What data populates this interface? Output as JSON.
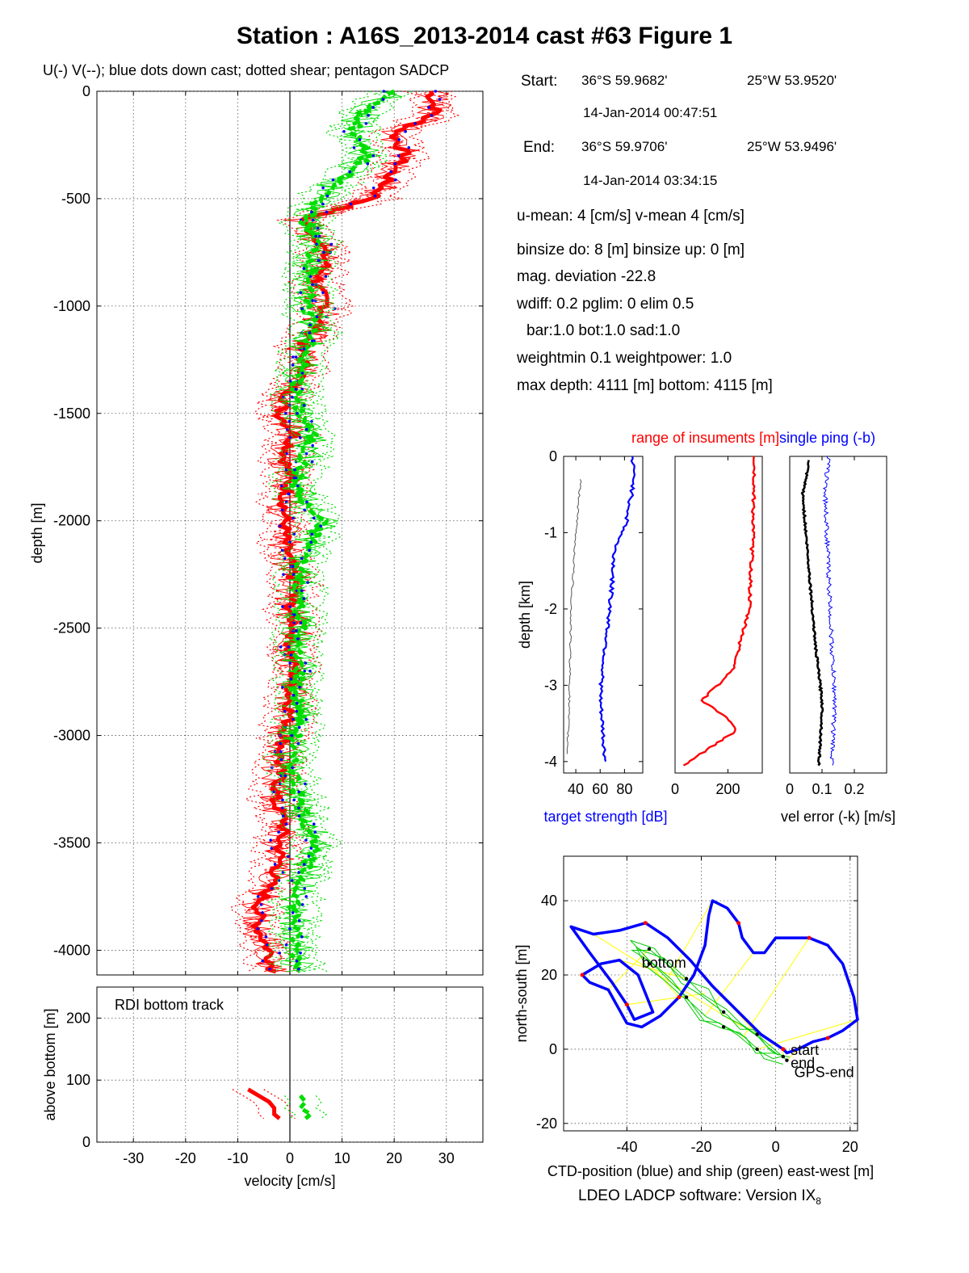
{
  "title": "Station : A16S_2013-2014 cast #63  Figure 1",
  "legend_text": "U(-) V(--); blue dots down cast; dotted shear; pentagon SADCP",
  "info": {
    "start_label": "Start:",
    "start_lat": "36°S 59.9682'",
    "start_lon": "25°W 53.9520'",
    "start_time": "14-Jan-2014 00:47:51",
    "end_label": "End:",
    "end_lat": "36°S 59.9706'",
    "end_lon": "25°W 53.9496'",
    "end_time": "14-Jan-2014 03:34:15",
    "means": "u-mean:   4 [cm/s]    v-mean   4 [cm/s]",
    "binsize": "binsize do: 8 [m]  binsize up:  0 [m]",
    "mag": "mag. deviation -22.8",
    "wdiff": "wdiff: 0.2  pglim: 0  elim 0.5",
    "bar": "bar:1.0 bot:1.0 sad:1.0",
    "weight": "weightmin 0.1  weightpower: 1.0",
    "depth": "max depth: 4111 [m]   bottom: 4115 [m]"
  },
  "software": "LDEO LADCP software: Version IX",
  "software_sub": "8",
  "colors": {
    "u": "#ff0000",
    "v": "#00dd00",
    "downcast": "#0000ff",
    "ctd": "#0000ff",
    "ship": "#00cc00",
    "links": "#ffff00"
  },
  "chart_data": [
    {
      "id": "profile",
      "type": "line",
      "ylabel": "depth [m]",
      "xlim": [
        -37,
        37
      ],
      "ylim": [
        -4115,
        0
      ],
      "xticks": [
        -30,
        -20,
        -10,
        0,
        10,
        20,
        30
      ],
      "yticks": [
        0,
        -500,
        -1000,
        -1500,
        -2000,
        -2500,
        -3000,
        -3500,
        -4000
      ],
      "grid": true,
      "series": [
        {
          "name": "U",
          "color": "#ff0000",
          "depth": [
            0,
            -100,
            -200,
            -300,
            -400,
            -500,
            -600,
            -700,
            -800,
            -900,
            -1000,
            -1100,
            -1200,
            -1300,
            -1400,
            -1500,
            -1600,
            -1700,
            -1800,
            -1900,
            -2000,
            -2100,
            -2200,
            -2300,
            -2400,
            -2500,
            -2600,
            -2700,
            -2800,
            -2900,
            -3000,
            -3100,
            -3200,
            -3300,
            -3400,
            -3500,
            -3600,
            -3700,
            -3800,
            -3900,
            -4000,
            -4100
          ],
          "values": [
            27,
            28,
            20,
            22,
            19,
            16,
            2,
            6,
            7,
            5,
            7,
            5,
            2,
            3,
            0,
            -2,
            1,
            -1,
            0,
            -1,
            -1,
            -1,
            0,
            1,
            0,
            1,
            0,
            1,
            0,
            0,
            -1,
            -2,
            -2,
            -3,
            -1,
            -2,
            -2,
            -4,
            -6,
            -6,
            -4,
            -3
          ]
        },
        {
          "name": "V",
          "color": "#00dd00",
          "depth": [
            0,
            -100,
            -200,
            -300,
            -400,
            -500,
            -600,
            -700,
            -800,
            -900,
            -1000,
            -1100,
            -1200,
            -1300,
            -1400,
            -1500,
            -1600,
            -1700,
            -1800,
            -1900,
            -2000,
            -2100,
            -2200,
            -2300,
            -2400,
            -2500,
            -2600,
            -2700,
            -2800,
            -2900,
            -3000,
            -3100,
            -3200,
            -3300,
            -3400,
            -3500,
            -3600,
            -3700,
            -3800,
            -3900,
            -4000,
            -4100
          ],
          "values": [
            20,
            14,
            12,
            15,
            10,
            6,
            3,
            5,
            4,
            4,
            3,
            5,
            3,
            2,
            1,
            2,
            4,
            3,
            1,
            2,
            6,
            4,
            2,
            2,
            2,
            2,
            1,
            2,
            1,
            2,
            1,
            0,
            1,
            2,
            3,
            5,
            3,
            2,
            1,
            1,
            1,
            2
          ]
        }
      ]
    },
    {
      "id": "bottom_track",
      "type": "line",
      "annotation": "RDI bottom track",
      "xlabel": "velocity [cm/s]",
      "ylabel": "above bottom [m]",
      "xlim": [
        -37,
        37
      ],
      "ylim": [
        0,
        250
      ],
      "xticks": [
        -30,
        -20,
        -10,
        0,
        10,
        20,
        30
      ],
      "yticks": [
        0,
        100,
        200
      ],
      "grid": true,
      "series": [
        {
          "name": "U",
          "color": "#ff0000",
          "height": [
            85,
            75,
            65,
            55,
            45,
            38
          ],
          "values": [
            -8,
            -6,
            -4,
            -3,
            -3,
            -2
          ]
        },
        {
          "name": "V",
          "color": "#00dd00",
          "height": [
            75,
            65,
            55,
            45,
            38
          ],
          "values": [
            2,
            3,
            2,
            4,
            3
          ]
        }
      ]
    },
    {
      "id": "target_strength",
      "type": "line",
      "ylabel": "depth [km]",
      "xlabel": "target strength [dB]",
      "xlim": [
        30,
        95
      ],
      "ylim": [
        -4.15,
        0
      ],
      "xticks": [
        40,
        60,
        80
      ],
      "yticks": [
        0,
        -1,
        -2,
        -3,
        -4
      ],
      "series": [
        {
          "name": "strength",
          "color": "#0000ff",
          "depth": [
            0,
            -0.3,
            -0.9,
            -1.2,
            -2,
            -2.8,
            -3.2,
            -3.6,
            -4.0
          ],
          "values": [
            86,
            88,
            81,
            72,
            68,
            62,
            60,
            62,
            64
          ]
        },
        {
          "name": "noise",
          "color": "#555555",
          "depth": [
            -0.3,
            -1,
            -2,
            -3,
            -3.9
          ],
          "values": [
            44,
            40,
            36,
            35,
            33
          ]
        }
      ]
    },
    {
      "id": "range",
      "type": "line",
      "annotation": "range of insuments [m]",
      "xlim": [
        0,
        330
      ],
      "ylim": [
        -4.15,
        0
      ],
      "xticks": [
        0,
        200
      ],
      "series": [
        {
          "name": "range",
          "color": "#ff0000",
          "depth": [
            0,
            -1,
            -2,
            -2.8,
            -3.2,
            -3.4,
            -3.6,
            -4.05
          ],
          "values": [
            300,
            295,
            280,
            220,
            100,
            190,
            230,
            30
          ]
        }
      ]
    },
    {
      "id": "vel_error",
      "type": "line",
      "annotation": "single ping (-b)",
      "xlabel": "vel error (-k) [m/s]",
      "xlim": [
        0,
        0.3
      ],
      "ylim": [
        -4.15,
        0
      ],
      "xticks": [
        0,
        0.1,
        0.2
      ],
      "series": [
        {
          "name": "-k",
          "color": "#000000",
          "depth": [
            -0.05,
            -0.5,
            -1.5,
            -2.5,
            -3.2,
            -3.4,
            -4.05
          ],
          "values": [
            0.06,
            0.04,
            0.06,
            0.08,
            0.1,
            0.1,
            0.09
          ]
        },
        {
          "name": "-b",
          "color": "#0000ff",
          "depth": [
            0,
            -0.5,
            -1.5,
            -2.5,
            -3.2,
            -4.05
          ],
          "values": [
            0.12,
            0.11,
            0.12,
            0.13,
            0.14,
            0.13
          ]
        }
      ]
    },
    {
      "id": "position",
      "type": "line",
      "xlabel": "CTD-position (blue) and ship (green) east-west [m]",
      "ylabel": "north-south [m]",
      "xlim": [
        -57,
        22
      ],
      "ylim": [
        -22,
        52
      ],
      "xticks": [
        -40,
        -20,
        0,
        20
      ],
      "yticks": [
        -20,
        0,
        20,
        40
      ],
      "annotations": [
        "bottom",
        "start",
        "end",
        "GPS-end"
      ],
      "series": [
        {
          "name": "CTD",
          "color": "#0000ff",
          "x": [
            2,
            -4,
            -10,
            -17,
            -23,
            -29,
            -35,
            -42,
            -49,
            -55,
            -50,
            -44,
            -40,
            -38,
            -33,
            -37,
            -42,
            -47,
            -52,
            -50,
            -45,
            -40,
            -36,
            -31,
            -26,
            -22,
            -19,
            -18,
            -17,
            -13,
            -10,
            -9,
            -6,
            -3,
            0,
            4,
            9,
            14,
            18,
            21,
            22,
            18,
            14,
            10,
            6,
            3,
            2
          ],
          "y": [
            0,
            4,
            10,
            17,
            24,
            30,
            34,
            32,
            31,
            33,
            26,
            18,
            12,
            8,
            10,
            20,
            24,
            23,
            20,
            18,
            16,
            7,
            6,
            9,
            14,
            20,
            28,
            36,
            40,
            38,
            34,
            30,
            26,
            26,
            30,
            30,
            30,
            28,
            23,
            14,
            8,
            5,
            3,
            2,
            0,
            -1,
            0
          ]
        },
        {
          "name": "ship",
          "color": "#00cc00",
          "x": [
            2,
            -2,
            -5,
            -9,
            -14,
            -19,
            -24,
            -29,
            -34,
            -38,
            -34,
            -29,
            -24,
            -19,
            -14,
            -9,
            -5,
            -2,
            3
          ],
          "y": [
            -2,
            1,
            4,
            6,
            10,
            15,
            19,
            23,
            27,
            28,
            23,
            19,
            14,
            9,
            6,
            3,
            0,
            -2,
            -3
          ]
        }
      ]
    }
  ]
}
